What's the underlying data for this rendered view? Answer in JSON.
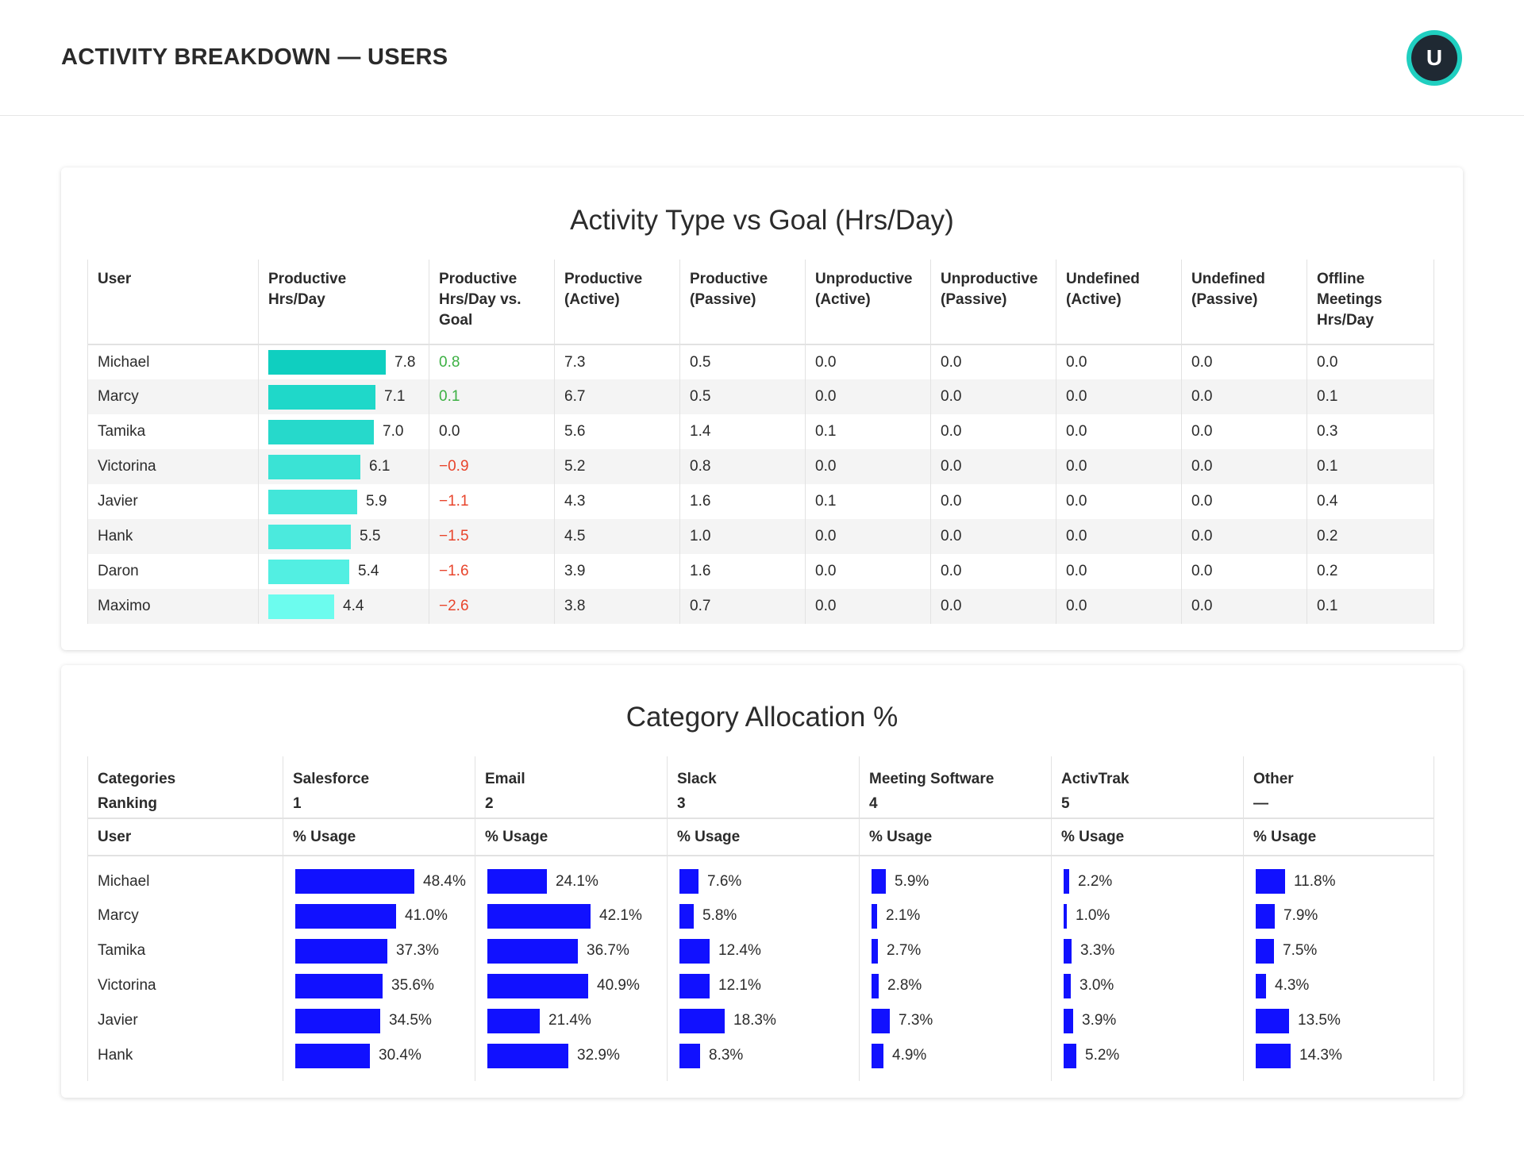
{
  "header": {
    "title": "ACTIVITY BREAKDOWN — USERS",
    "avatar_letter": "U"
  },
  "activity": {
    "title": "Activity Type vs Goal (Hrs/Day)",
    "columns": [
      "User",
      "Productive\nHrs/Day",
      "Productive\nHrs/Day vs.\nGoal",
      "Productive\n(Active)",
      "Productive\n(Passive)",
      "Unproductive\n(Active)",
      "Unproductive\n(Passive)",
      "Undefined\n(Active)",
      "Undefined\n(Passive)",
      "Offline\nMeetings\nHrs/Day"
    ],
    "bar_max": 7.8,
    "rows": [
      {
        "user": "Michael",
        "productive": 7.8,
        "productive_label": "7.8",
        "vs_goal": "0.8",
        "vs_sign": "pos",
        "p_active": "7.3",
        "p_passive": "0.5",
        "u_active": "0.0",
        "u_passive": "0.0",
        "d_active": "0.0",
        "d_passive": "0.0",
        "offline": "0.0",
        "color": "#0fcfc0"
      },
      {
        "user": "Marcy",
        "productive": 7.1,
        "productive_label": "7.1",
        "vs_goal": "0.1",
        "vs_sign": "pos",
        "p_active": "6.7",
        "p_passive": "0.5",
        "u_active": "0.0",
        "u_passive": "0.0",
        "d_active": "0.0",
        "d_passive": "0.0",
        "offline": "0.1",
        "color": "#1fd8c9"
      },
      {
        "user": "Tamika",
        "productive": 7.0,
        "productive_label": "7.0",
        "vs_goal": "0.0",
        "vs_sign": "zero",
        "p_active": "5.6",
        "p_passive": "1.4",
        "u_active": "0.1",
        "u_passive": "0.0",
        "d_active": "0.0",
        "d_passive": "0.0",
        "offline": "0.3",
        "color": "#26d9cb"
      },
      {
        "user": "Victorina",
        "productive": 6.1,
        "productive_label": "6.1",
        "vs_goal": "−0.9",
        "vs_sign": "neg",
        "p_active": "5.2",
        "p_passive": "0.8",
        "u_active": "0.0",
        "u_passive": "0.0",
        "d_active": "0.0",
        "d_passive": "0.0",
        "offline": "0.1",
        "color": "#3ae3d5"
      },
      {
        "user": "Javier",
        "productive": 5.9,
        "productive_label": "5.9",
        "vs_goal": "−1.1",
        "vs_sign": "neg",
        "p_active": "4.3",
        "p_passive": "1.6",
        "u_active": "0.1",
        "u_passive": "0.0",
        "d_active": "0.0",
        "d_passive": "0.0",
        "offline": "0.4",
        "color": "#42e6d9"
      },
      {
        "user": "Hank",
        "productive": 5.5,
        "productive_label": "5.5",
        "vs_goal": "−1.5",
        "vs_sign": "neg",
        "p_active": "4.5",
        "p_passive": "1.0",
        "u_active": "0.0",
        "u_passive": "0.0",
        "d_active": "0.0",
        "d_passive": "0.0",
        "offline": "0.2",
        "color": "#4beadd"
      },
      {
        "user": "Daron",
        "productive": 5.4,
        "productive_label": "5.4",
        "vs_goal": "−1.6",
        "vs_sign": "neg",
        "p_active": "3.9",
        "p_passive": "1.6",
        "u_active": "0.0",
        "u_passive": "0.0",
        "d_active": "0.0",
        "d_passive": "0.0",
        "offline": "0.2",
        "color": "#52efe2"
      },
      {
        "user": "Maximo",
        "productive": 4.4,
        "productive_label": "4.4",
        "vs_goal": "−2.6",
        "vs_sign": "neg",
        "p_active": "3.8",
        "p_passive": "0.7",
        "u_active": "0.0",
        "u_passive": "0.0",
        "d_active": "0.0",
        "d_passive": "0.0",
        "offline": "0.1",
        "color": "#6cfcee"
      }
    ]
  },
  "category": {
    "title": "Category Allocation %",
    "ranking_label": "Categories\nRanking",
    "user_label": "User",
    "usage_label": "% Usage",
    "bar_color": "#1111ff",
    "categories": [
      {
        "name": "Salesforce",
        "rank": "1"
      },
      {
        "name": "Email",
        "rank": "2"
      },
      {
        "name": "Slack",
        "rank": "3"
      },
      {
        "name": "Meeting Software",
        "rank": "4"
      },
      {
        "name": "ActivTrak",
        "rank": "5"
      },
      {
        "name": "Other",
        "rank": "—"
      }
    ],
    "rows": [
      {
        "user": "Michael",
        "values": [
          48.4,
          24.1,
          7.6,
          5.9,
          2.2,
          11.8
        ]
      },
      {
        "user": "Marcy",
        "values": [
          41.0,
          42.1,
          5.8,
          2.1,
          1.0,
          7.9
        ]
      },
      {
        "user": "Tamika",
        "values": [
          37.3,
          36.7,
          12.4,
          2.7,
          3.3,
          7.5
        ]
      },
      {
        "user": "Victorina",
        "values": [
          35.6,
          40.9,
          12.1,
          2.8,
          3.0,
          4.3
        ]
      },
      {
        "user": "Javier",
        "values": [
          34.5,
          21.4,
          18.3,
          7.3,
          3.9,
          13.5
        ]
      },
      {
        "user": "Hank",
        "values": [
          30.4,
          32.9,
          8.3,
          4.9,
          5.2,
          14.3
        ]
      }
    ],
    "value_labels": [
      [
        "48.4%",
        "24.1%",
        "7.6%",
        "5.9%",
        "2.2%",
        "11.8%"
      ],
      [
        "41.0%",
        "42.1%",
        "5.8%",
        "2.1%",
        "1.0%",
        "7.9%"
      ],
      [
        "37.3%",
        "36.7%",
        "12.4%",
        "2.7%",
        "3.3%",
        "7.5%"
      ],
      [
        "35.6%",
        "40.9%",
        "12.1%",
        "2.8%",
        "3.0%",
        "4.3%"
      ],
      [
        "34.5%",
        "21.4%",
        "18.3%",
        "7.3%",
        "3.9%",
        "13.5%"
      ],
      [
        "30.4%",
        "32.9%",
        "8.3%",
        "4.9%",
        "5.2%",
        "14.3%"
      ]
    ]
  }
}
